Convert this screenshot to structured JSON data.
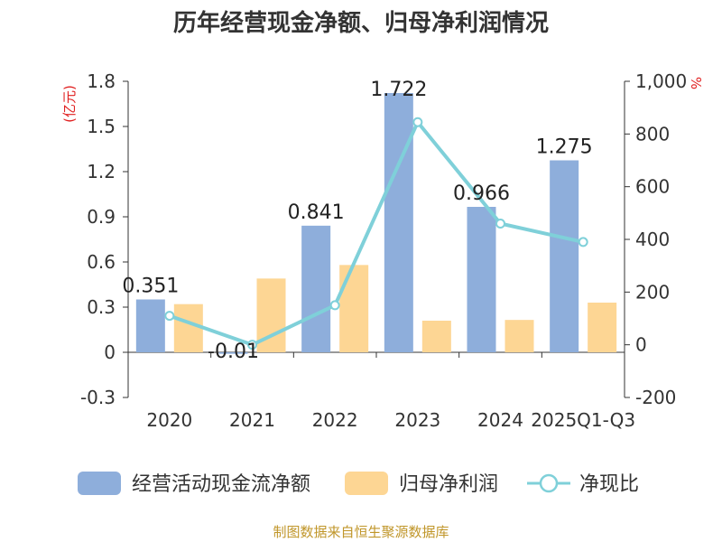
{
  "chart_data": {
    "type": "bar",
    "title": "历年经营现金净额、归母净利润情况",
    "left_unit": "(亿元)",
    "right_unit": "%",
    "categories": [
      "2020",
      "2021",
      "2022",
      "2023",
      "2024",
      "2025Q1-Q3"
    ],
    "series": [
      {
        "name": "经营活动现金流净额",
        "kind": "bar",
        "axis": "left",
        "values": [
          0.351,
          -0.01,
          0.841,
          1.722,
          0.966,
          1.275
        ],
        "labels": [
          "0.351",
          "-0.01",
          "0.841",
          "1.722",
          "0.966",
          "1.275"
        ],
        "color": "#8eaedb"
      },
      {
        "name": "归母净利润",
        "kind": "bar",
        "axis": "left",
        "values": [
          0.32,
          0.49,
          0.58,
          0.21,
          0.215,
          0.33
        ],
        "color": "#fdd694"
      },
      {
        "name": "净现比",
        "kind": "line",
        "axis": "right",
        "values": [
          110,
          0,
          150,
          845,
          460,
          390
        ],
        "color": "#7fd0d9"
      }
    ],
    "left_axis": {
      "min": -0.3,
      "max": 1.8,
      "ticks": [
        "-0.3",
        "0",
        "0.3",
        "0.6",
        "0.9",
        "1.2",
        "1.5",
        "1.8"
      ]
    },
    "right_axis": {
      "min": -200,
      "max": 1000,
      "ticks": [
        "-200",
        "0",
        "200",
        "400",
        "600",
        "800",
        "1,000"
      ]
    },
    "grid": false,
    "legend_position": "bottom"
  },
  "source": "制图数据来自恒生聚源数据库",
  "colors": {
    "title": "#333333",
    "unit": "#e02020",
    "source": "#c0962a"
  }
}
